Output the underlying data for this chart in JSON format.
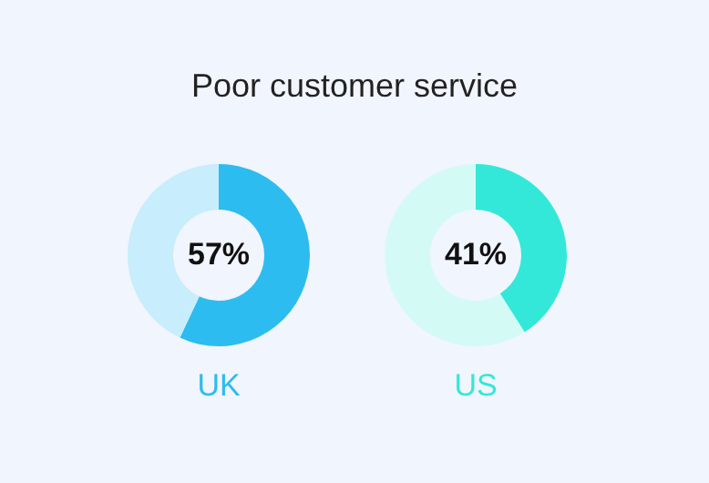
{
  "chart_data": [
    {
      "type": "donut",
      "title": "Poor customer service",
      "xlabel": "UK",
      "categories": [
        null,
        null
      ],
      "values": [
        57,
        43
      ],
      "colors": [
        "#2dbcef",
        "#c8edfc"
      ],
      "value_labels": [
        "57%",
        null
      ]
    },
    {
      "type": "donut",
      "xlabel": "US",
      "categories": [
        null,
        null
      ],
      "values": [
        41,
        59
      ],
      "colors": [
        "#33e8d8",
        "#d4faf6"
      ],
      "value_labels": [
        "41%",
        null
      ]
    }
  ]
}
